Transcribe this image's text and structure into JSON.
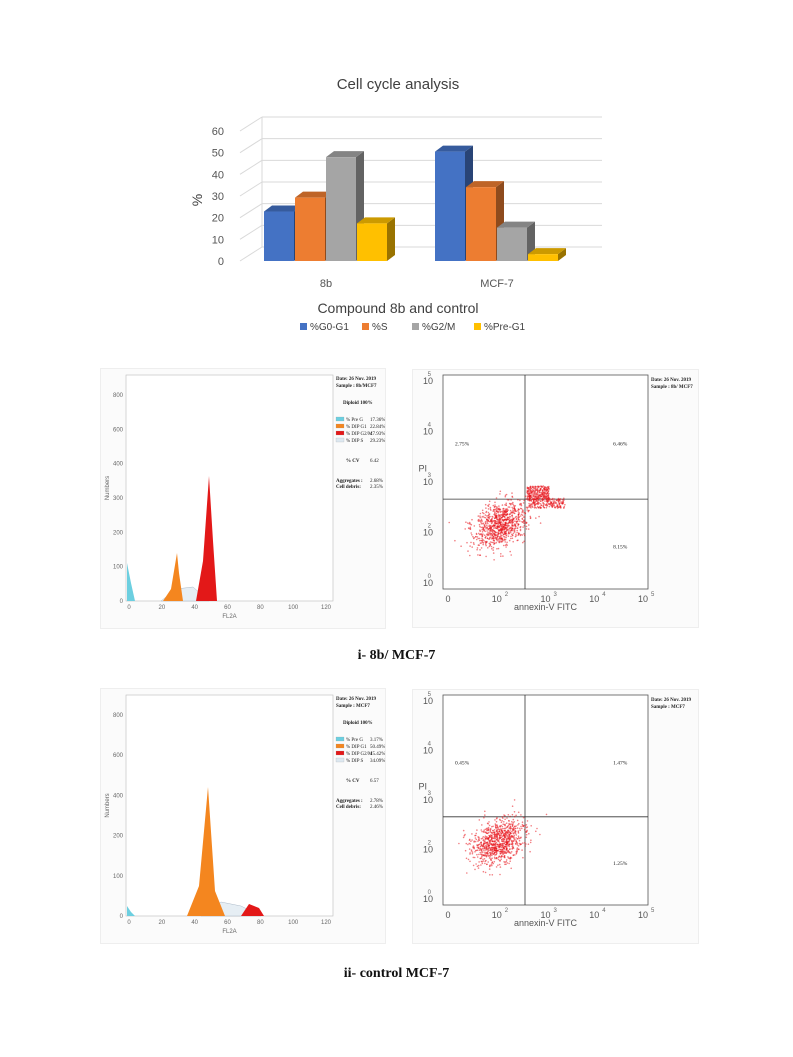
{
  "chart_data": {
    "type": "bar",
    "title": "Cell cycle analysis",
    "xlabel": "Compound 8b and control",
    "ylabel": "%",
    "ylim": [
      0,
      60
    ],
    "yticks": [
      "0",
      "10",
      "20",
      "30",
      "40",
      "50",
      "60"
    ],
    "categories": [
      "8b",
      "MCF-7"
    ],
    "series": [
      {
        "name": "%G0-G1",
        "color": "#4472c4",
        "values": [
          22.84,
          50.49
        ]
      },
      {
        "name": "%S",
        "color": "#ed7d31",
        "values": [
          29.23,
          34.09
        ]
      },
      {
        "name": "%G2/M",
        "color": "#a5a5a5",
        "values": [
          47.93,
          15.42
        ]
      },
      {
        "name": "%Pre-G1",
        "color": "#ffc000",
        "values": [
          17.36,
          3.17
        ]
      }
    ],
    "legend_position": "bottom",
    "grid": true
  },
  "histograms": [
    {
      "date": "Date: 26 Nov. 2019",
      "sample": "Sample : 8b/MCF7",
      "diploid": "Diploid  100%",
      "legend": [
        {
          "label": "% Pre G",
          "value": "17.36%",
          "color": "#6ccfe0"
        },
        {
          "label": "% DIP G1",
          "value": "22.84%",
          "color": "#f4861f"
        },
        {
          "label": "% DIP G2/M",
          "value": "47.93%",
          "color": "#e31818"
        },
        {
          "label": "% DIP S",
          "value": "29.23%",
          "color": "#dde8f0"
        }
      ],
      "cv_label": "% CV",
      "cv_value": "6.42",
      "aggregates_label": "Aggregates :",
      "aggregates_value": "2.68%",
      "debris_label": "Cell debris:",
      "debris_value": "2.35%",
      "y_axis_title": "Numbers",
      "x_axis_title": "FL2A",
      "yticks": [
        "0",
        "100",
        "200",
        "300",
        "400",
        "600",
        "800"
      ],
      "xticks": [
        "0",
        "20",
        "40",
        "60",
        "80",
        "100",
        "120"
      ]
    },
    {
      "date": "Date: 26 Nov. 2019",
      "sample": "Sample : MCF7",
      "diploid": "Diploid  100%",
      "legend": [
        {
          "label": "% Pre G",
          "value": "3.17%",
          "color": "#6ccfe0"
        },
        {
          "label": "% DIP G1",
          "value": "50.49%",
          "color": "#f4861f"
        },
        {
          "label": "% DIP G2/M",
          "value": "15.42%",
          "color": "#e31818"
        },
        {
          "label": "% DIP S",
          "value": "34.09%",
          "color": "#dde8f0"
        }
      ],
      "cv_label": "% CV",
      "cv_value": "6.57",
      "aggregates_label": "Aggregates :",
      "aggregates_value": "2.78%",
      "debris_label": "Cell debris:",
      "debris_value": "2.46%",
      "y_axis_title": "Numbers",
      "x_axis_title": "FL2A",
      "yticks": [
        "0",
        "100",
        "200",
        "400",
        "600",
        "800"
      ],
      "xticks": [
        "0",
        "20",
        "40",
        "60",
        "80",
        "100",
        "120"
      ]
    }
  ],
  "flow_plots": [
    {
      "date": "Date: 26 Nov. 2019",
      "sample": "Sample : 8b/ MCF7",
      "q_upper_left": "2.75%",
      "q_upper_right": "6.46%",
      "q_lower_right": "8.15%",
      "y_axis_title": "PI",
      "x_axis_title": "annexin-V FITC"
    },
    {
      "date": "Date: 26 Nov. 2019",
      "sample": "Sample : MCF7",
      "q_upper_left": "0.45%",
      "q_upper_right": "1.47%",
      "q_lower_right": "1.25%",
      "y_axis_title": "PI",
      "x_axis_title": "annexin-V FITC"
    }
  ],
  "captions": {
    "top": "i- 8b/ MCF-7",
    "bottom": "ii- control MCF-7"
  }
}
